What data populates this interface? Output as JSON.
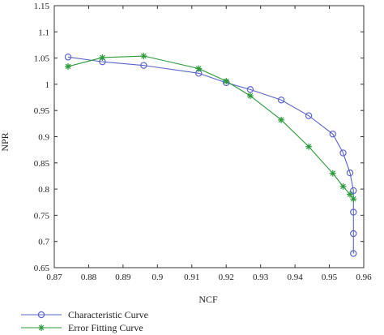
{
  "chart_data": {
    "type": "line",
    "xlabel": "NCF",
    "ylabel": "NPR",
    "xlim": [
      0.87,
      0.96
    ],
    "ylim": [
      0.65,
      1.15
    ],
    "xticks": [
      "0.87",
      "0.88",
      "0.89",
      "0.9",
      "0.91",
      "0.92",
      "0.93",
      "0.94",
      "0.95",
      "0.96"
    ],
    "yticks": [
      "0.65",
      "0.7",
      "0.75",
      "0.8",
      "0.85",
      "0.9",
      "0.95",
      "1",
      "1.05",
      "1.1",
      "1.15"
    ],
    "grid": false,
    "legend_position": "below",
    "series": [
      {
        "name": "Characteristic Curve",
        "color": "#5a64c8",
        "marker": "circle",
        "x": [
          0.874,
          0.884,
          0.896,
          0.912,
          0.92,
          0.927,
          0.936,
          0.944,
          0.951,
          0.954,
          0.956,
          0.957,
          0.957,
          0.957,
          0.957
        ],
        "y": [
          1.052,
          1.043,
          1.036,
          1.021,
          1.003,
          0.99,
          0.97,
          0.94,
          0.905,
          0.869,
          0.831,
          0.797,
          0.756,
          0.715,
          0.677
        ]
      },
      {
        "name": "Error Fitting Curve",
        "color": "#2a9a3a",
        "marker": "star",
        "x": [
          0.874,
          0.884,
          0.896,
          0.912,
          0.92,
          0.927,
          0.936,
          0.944,
          0.951,
          0.954,
          0.956,
          0.957
        ],
        "y": [
          1.034,
          1.051,
          1.054,
          1.03,
          1.006,
          0.978,
          0.932,
          0.881,
          0.83,
          0.805,
          0.79,
          0.781
        ]
      }
    ]
  }
}
